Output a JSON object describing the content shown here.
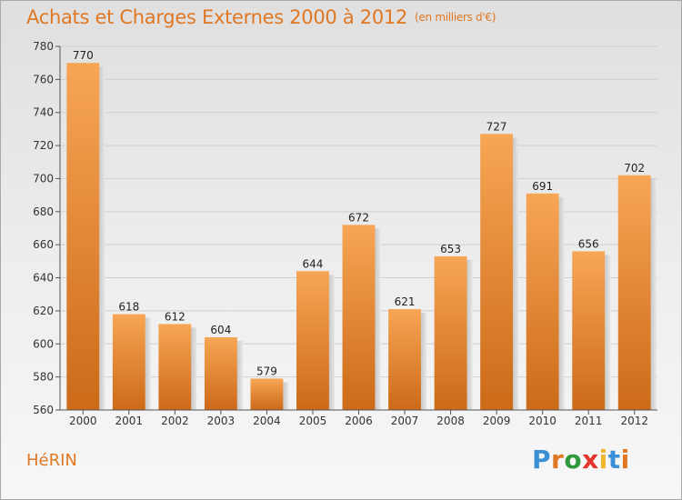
{
  "header": {
    "title": "Achats et Charges Externes 2000 à 2012",
    "unit": "(en milliers d'€)"
  },
  "footer": {
    "commune": "HéRIN",
    "logo_letters": [
      "P",
      "r",
      "o",
      "x",
      "i",
      "t",
      "i"
    ]
  },
  "colors": {
    "accent": "#e07722",
    "bar_top": "#f7a655",
    "bar_bottom": "#cc6a18"
  },
  "chart_data": {
    "type": "bar",
    "title": "Achats et Charges Externes 2000 à 2012",
    "subtitle": "(en milliers d'€)",
    "categories": [
      "2000",
      "2001",
      "2002",
      "2003",
      "2004",
      "2005",
      "2006",
      "2007",
      "2008",
      "2009",
      "2010",
      "2011",
      "2012"
    ],
    "values": [
      770,
      618,
      612,
      604,
      579,
      644,
      672,
      621,
      653,
      727,
      691,
      656,
      702
    ],
    "ylim": [
      560,
      780
    ],
    "yticks": [
      560,
      580,
      600,
      620,
      640,
      660,
      680,
      700,
      720,
      740,
      760,
      780
    ],
    "grid": true,
    "legend": "none"
  }
}
